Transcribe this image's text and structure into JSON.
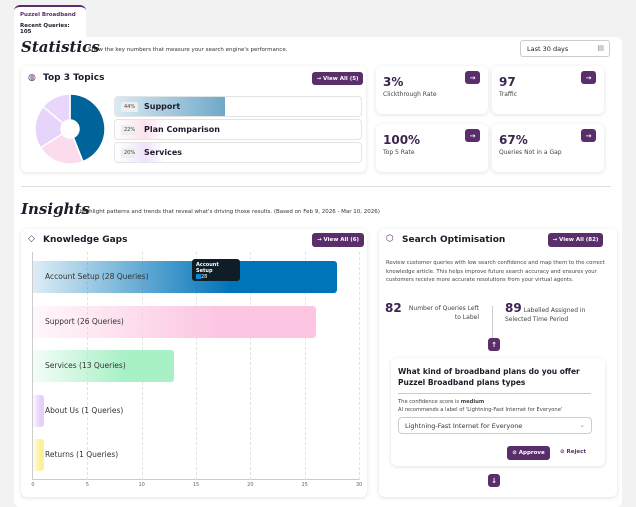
{
  "tab": {
    "name": "Puzzel Broadband",
    "recent_queries": "Recent Queries: 105"
  },
  "statistics": {
    "title": "Statistics",
    "subtitle": "Show the key numbers that measure your search engine's performance.",
    "date_range": "Last 30 days",
    "top_topics": {
      "title": "Top 3 Topics",
      "view_all": "→ View All (5)",
      "topics": [
        {
          "pct": "44%",
          "name": "Support",
          "value": 44,
          "color": "#00639a"
        },
        {
          "pct": "22%",
          "name": "Plan Comparison",
          "value": 22,
          "color": "#fbdcec"
        },
        {
          "pct": "20%",
          "name": "Services",
          "value": 20,
          "color": "#e6d4fa"
        }
      ]
    },
    "stats": [
      {
        "value": "3%",
        "label": "Clickthrough Rate"
      },
      {
        "value": "97",
        "label": "Traffic"
      },
      {
        "value": "100%",
        "label": "Top 5 Rate"
      },
      {
        "value": "67%",
        "label": "Queries Not in a Gap"
      }
    ]
  },
  "insights": {
    "title": "Insights",
    "subtitle": "Highlight patterns and trends that reveal what's driving those results. (Based on Feb 9, 2026 - Mar 10, 2026)"
  },
  "knowledge_gaps": {
    "title": "Knowledge Gaps",
    "view_all": "→ View All (6)",
    "tooltip": {
      "title": "Account Setup",
      "value": "28"
    }
  },
  "chart_data": {
    "type": "bar",
    "orientation": "horizontal",
    "categories": [
      "Account Setup (28 Queries)",
      "Support (26 Queries)",
      "Services (13 Queries)",
      "About Us (1 Queries)",
      "Returns (1 Queries)"
    ],
    "values": [
      28,
      26,
      13,
      1,
      1
    ],
    "xlim": [
      0,
      30
    ],
    "xticks": [
      "0",
      "5",
      "10",
      "15",
      "20",
      "25",
      "30"
    ],
    "colors": [
      "#0074b8",
      "#fcc6e2",
      "#a8f0c6",
      "#e6d0fb",
      "#fdf09a"
    ],
    "grid": true
  },
  "search_optimisation": {
    "title": "Search Optimisation",
    "view_all": "→ View All (82)",
    "description": "Review customer queries with low search confidence and map them to the correct knowledge article. This helps improve future search accuracy and ensures your customers receive more accurate resolutions from your virtual agents.",
    "left_count": "82",
    "left_label": "Number of Queries Left to Label",
    "assigned_count": "89",
    "assigned_label": "Labelled Assigned in Selected Time Period",
    "query": "What kind of broadband plans do you offer Puzzel Broadband plans types",
    "confidence_prefix": "The confidence score is ",
    "confidence": "medium",
    "recommendation": "AI recommends a label of 'Lightning-Fast Internet for Everyone'",
    "selected_label": "Lightning-Fast Internet for Everyone",
    "approve": "Approve",
    "reject": "Reject"
  },
  "accent": "#5a2d6b"
}
